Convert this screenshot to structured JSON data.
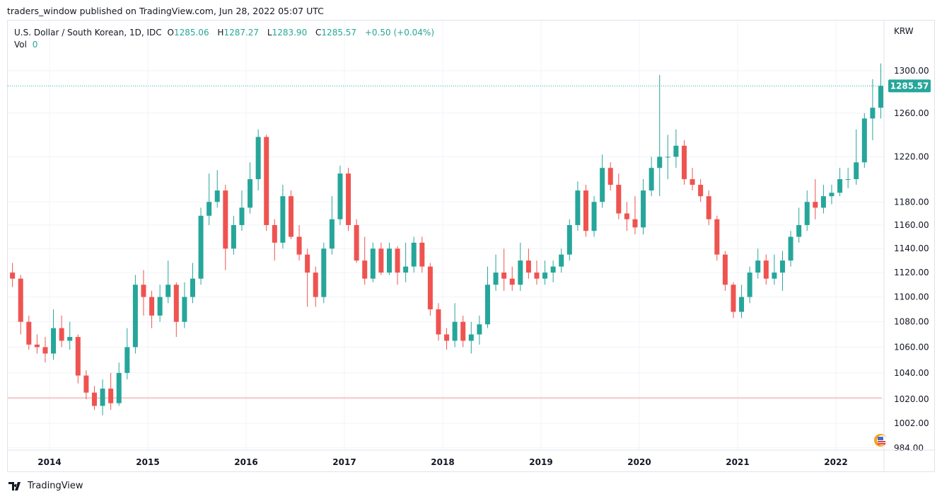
{
  "header": {
    "published": "traders_window published on TradingView.com, Jun 28, 2022 05:07 UTC"
  },
  "legend": {
    "symbol": "U.S. Dollar / South Korean, 1D, IDC",
    "o_label": "O",
    "o": "1285.06",
    "h_label": "H",
    "h": "1287.27",
    "l_label": "L",
    "l": "1283.90",
    "c_label": "C",
    "c": "1285.57",
    "change": "+0.50 (+0.04%)",
    "vol_label": "Vol",
    "vol": "0"
  },
  "footer": {
    "brand": "TradingView"
  },
  "colors": {
    "up": "#26a69a",
    "down": "#ef5350",
    "grid": "#f0f3fa",
    "horizontal_line": "#ef5350"
  },
  "chart_data": {
    "type": "candlestick",
    "scale": "log",
    "currency": "KRW",
    "last_price": "1285.57",
    "horizontal_line": 1021,
    "grid": true,
    "ylim": [
      980,
      1315
    ],
    "y_ticks": [
      "1300.00",
      "1260.00",
      "1220.00",
      "1180.00",
      "1160.00",
      "1140.00",
      "1120.00",
      "1100.00",
      "1080.00",
      "1060.00",
      "1040.00",
      "1020.00",
      "1002.00",
      "984.00"
    ],
    "x_ticks": [
      "2014",
      "2015",
      "2016",
      "2017",
      "2018",
      "2019",
      "2020",
      "2021",
      "2022"
    ],
    "columns": [
      "month",
      "open",
      "high",
      "low",
      "close"
    ],
    "ohlc": [
      [
        "2013-08",
        1120,
        1128,
        1108,
        1115
      ],
      [
        "2013-09",
        1115,
        1118,
        1070,
        1080
      ],
      [
        "2013-10",
        1080,
        1085,
        1058,
        1062
      ],
      [
        "2013-11",
        1062,
        1070,
        1055,
        1060
      ],
      [
        "2013-12",
        1060,
        1068,
        1048,
        1055
      ],
      [
        "2014-01",
        1055,
        1090,
        1050,
        1075
      ],
      [
        "2014-02",
        1075,
        1085,
        1060,
        1065
      ],
      [
        "2014-03",
        1065,
        1080,
        1058,
        1068
      ],
      [
        "2014-04",
        1068,
        1070,
        1032,
        1038
      ],
      [
        "2014-05",
        1038,
        1042,
        1020,
        1025
      ],
      [
        "2014-06",
        1025,
        1030,
        1012,
        1015
      ],
      [
        "2014-07",
        1015,
        1035,
        1008,
        1028
      ],
      [
        "2014-08",
        1028,
        1040,
        1012,
        1017
      ],
      [
        "2014-09",
        1017,
        1048,
        1015,
        1040
      ],
      [
        "2014-10",
        1040,
        1075,
        1035,
        1060
      ],
      [
        "2014-11",
        1060,
        1118,
        1055,
        1110
      ],
      [
        "2014-12",
        1110,
        1122,
        1085,
        1100
      ],
      [
        "2015-01",
        1100,
        1105,
        1075,
        1085
      ],
      [
        "2015-02",
        1085,
        1110,
        1080,
        1100
      ],
      [
        "2015-03",
        1100,
        1130,
        1095,
        1110
      ],
      [
        "2015-04",
        1110,
        1112,
        1068,
        1080
      ],
      [
        "2015-05",
        1080,
        1112,
        1075,
        1100
      ],
      [
        "2015-06",
        1100,
        1128,
        1095,
        1115
      ],
      [
        "2015-07",
        1115,
        1175,
        1110,
        1168
      ],
      [
        "2015-08",
        1168,
        1205,
        1160,
        1180
      ],
      [
        "2015-09",
        1180,
        1208,
        1175,
        1190
      ],
      [
        "2015-10",
        1190,
        1195,
        1122,
        1140
      ],
      [
        "2015-11",
        1140,
        1168,
        1135,
        1160
      ],
      [
        "2015-12",
        1160,
        1190,
        1155,
        1175
      ],
      [
        "2016-01",
        1175,
        1215,
        1170,
        1200
      ],
      [
        "2016-02",
        1200,
        1245,
        1190,
        1238
      ],
      [
        "2016-03",
        1238,
        1240,
        1155,
        1160
      ],
      [
        "2016-04",
        1160,
        1165,
        1130,
        1145
      ],
      [
        "2016-05",
        1145,
        1195,
        1140,
        1185
      ],
      [
        "2016-06",
        1185,
        1190,
        1148,
        1150
      ],
      [
        "2016-07",
        1150,
        1160,
        1130,
        1135
      ],
      [
        "2016-08",
        1135,
        1140,
        1092,
        1120
      ],
      [
        "2016-09",
        1120,
        1125,
        1092,
        1100
      ],
      [
        "2016-10",
        1100,
        1145,
        1095,
        1140
      ],
      [
        "2016-11",
        1140,
        1185,
        1135,
        1165
      ],
      [
        "2016-12",
        1165,
        1212,
        1160,
        1205
      ],
      [
        "2017-01",
        1205,
        1210,
        1155,
        1160
      ],
      [
        "2017-02",
        1160,
        1165,
        1128,
        1130
      ],
      [
        "2017-03",
        1130,
        1150,
        1110,
        1115
      ],
      [
        "2017-04",
        1115,
        1145,
        1112,
        1140
      ],
      [
        "2017-05",
        1140,
        1145,
        1118,
        1120
      ],
      [
        "2017-06",
        1120,
        1145,
        1118,
        1140
      ],
      [
        "2017-07",
        1140,
        1142,
        1110,
        1120
      ],
      [
        "2017-08",
        1120,
        1145,
        1112,
        1125
      ],
      [
        "2017-09",
        1125,
        1150,
        1120,
        1145
      ],
      [
        "2017-10",
        1145,
        1150,
        1120,
        1125
      ],
      [
        "2017-11",
        1125,
        1128,
        1085,
        1090
      ],
      [
        "2017-12",
        1090,
        1095,
        1065,
        1070
      ],
      [
        "2018-01",
        1070,
        1075,
        1058,
        1065
      ],
      [
        "2018-02",
        1065,
        1095,
        1060,
        1080
      ],
      [
        "2018-03",
        1080,
        1085,
        1060,
        1065
      ],
      [
        "2018-04",
        1065,
        1080,
        1055,
        1070
      ],
      [
        "2018-05",
        1070,
        1085,
        1062,
        1078
      ],
      [
        "2018-06",
        1078,
        1125,
        1075,
        1110
      ],
      [
        "2018-07",
        1110,
        1135,
        1105,
        1120
      ],
      [
        "2018-08",
        1120,
        1140,
        1105,
        1115
      ],
      [
        "2018-09",
        1115,
        1125,
        1105,
        1110
      ],
      [
        "2018-10",
        1110,
        1145,
        1105,
        1130
      ],
      [
        "2018-11",
        1130,
        1140,
        1115,
        1120
      ],
      [
        "2018-12",
        1120,
        1130,
        1110,
        1115
      ],
      [
        "2019-01",
        1115,
        1130,
        1110,
        1120
      ],
      [
        "2019-02",
        1120,
        1130,
        1112,
        1125
      ],
      [
        "2019-03",
        1125,
        1140,
        1120,
        1135
      ],
      [
        "2019-04",
        1135,
        1165,
        1130,
        1160
      ],
      [
        "2019-05",
        1160,
        1198,
        1155,
        1190
      ],
      [
        "2019-06",
        1190,
        1195,
        1150,
        1155
      ],
      [
        "2019-07",
        1155,
        1185,
        1150,
        1180
      ],
      [
        "2019-08",
        1180,
        1222,
        1175,
        1210
      ],
      [
        "2019-09",
        1210,
        1215,
        1190,
        1195
      ],
      [
        "2019-10",
        1195,
        1205,
        1165,
        1170
      ],
      [
        "2019-11",
        1170,
        1180,
        1155,
        1165
      ],
      [
        "2019-12",
        1165,
        1185,
        1152,
        1158
      ],
      [
        "2020-01",
        1158,
        1200,
        1152,
        1190
      ],
      [
        "2020-02",
        1190,
        1220,
        1185,
        1210
      ],
      [
        "2020-03",
        1210,
        1296,
        1185,
        1220
      ],
      [
        "2020-04",
        1220,
        1240,
        1200,
        1220
      ],
      [
        "2020-05",
        1220,
        1245,
        1210,
        1230
      ],
      [
        "2020-06",
        1230,
        1235,
        1195,
        1200
      ],
      [
        "2020-07",
        1200,
        1210,
        1190,
        1195
      ],
      [
        "2020-08",
        1195,
        1200,
        1180,
        1185
      ],
      [
        "2020-09",
        1185,
        1190,
        1160,
        1165
      ],
      [
        "2020-10",
        1165,
        1168,
        1130,
        1135
      ],
      [
        "2020-11",
        1135,
        1138,
        1105,
        1110
      ],
      [
        "2020-12",
        1110,
        1112,
        1083,
        1088
      ],
      [
        "2021-01",
        1088,
        1110,
        1083,
        1100
      ],
      [
        "2021-02",
        1100,
        1125,
        1095,
        1120
      ],
      [
        "2021-03",
        1120,
        1140,
        1115,
        1130
      ],
      [
        "2021-04",
        1130,
        1135,
        1110,
        1115
      ],
      [
        "2021-05",
        1115,
        1135,
        1110,
        1120
      ],
      [
        "2021-06",
        1120,
        1138,
        1105,
        1130
      ],
      [
        "2021-07",
        1130,
        1155,
        1125,
        1150
      ],
      [
        "2021-08",
        1150,
        1175,
        1145,
        1160
      ],
      [
        "2021-09",
        1160,
        1190,
        1155,
        1180
      ],
      [
        "2021-10",
        1180,
        1200,
        1165,
        1175
      ],
      [
        "2021-11",
        1175,
        1195,
        1170,
        1185
      ],
      [
        "2021-12",
        1185,
        1195,
        1178,
        1188
      ],
      [
        "2022-01",
        1188,
        1210,
        1185,
        1200
      ],
      [
        "2022-02",
        1200,
        1210,
        1192,
        1200
      ],
      [
        "2022-03",
        1200,
        1245,
        1195,
        1215
      ],
      [
        "2022-04",
        1215,
        1260,
        1210,
        1255
      ],
      [
        "2022-05",
        1255,
        1292,
        1235,
        1265
      ],
      [
        "2022-06",
        1265,
        1307,
        1255,
        1285.57
      ]
    ]
  }
}
